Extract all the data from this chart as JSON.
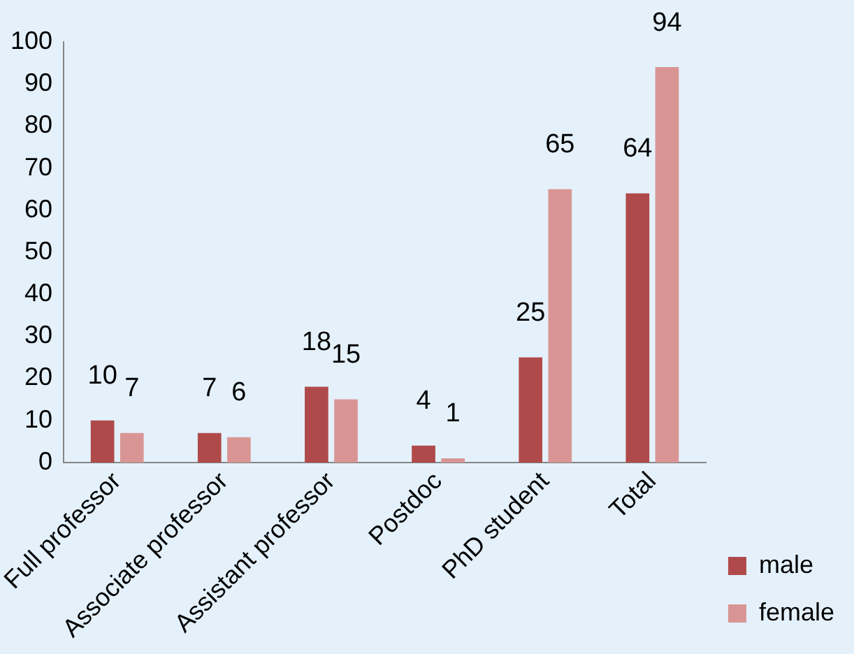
{
  "chart_data": {
    "type": "bar",
    "categories": [
      "Full professor",
      "Associate professor",
      "Assistant professor",
      "Postdoc",
      "PhD student",
      "Total"
    ],
    "series": [
      {
        "name": "male",
        "color": "#b04a4a",
        "values": [
          10,
          7,
          18,
          4,
          25,
          64
        ]
      },
      {
        "name": "female",
        "color": "#d99594",
        "values": [
          7,
          6,
          15,
          1,
          65,
          94
        ]
      }
    ],
    "ylim": [
      0,
      100
    ],
    "yticks": [
      0,
      10,
      20,
      30,
      40,
      50,
      60,
      70,
      80,
      90,
      100
    ],
    "grid": false,
    "legend": "bottom right",
    "data_labels": true
  }
}
